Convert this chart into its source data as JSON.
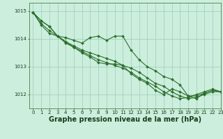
{
  "xlabel": "Graphe pression niveau de la mer (hPa)",
  "xlim": [
    -0.5,
    23
  ],
  "ylim": [
    1011.5,
    1015.3
  ],
  "yticks": [
    1012,
    1013,
    1014,
    1015
  ],
  "xticks": [
    0,
    1,
    2,
    3,
    4,
    5,
    6,
    7,
    8,
    9,
    10,
    11,
    12,
    13,
    14,
    15,
    16,
    17,
    18,
    19,
    20,
    21,
    22,
    23
  ],
  "bg_color": "#cceedd",
  "grid_color": "#99ccbb",
  "line_color": "#2d6e2d",
  "line1": [
    1014.95,
    1014.65,
    1014.45,
    1014.1,
    1014.05,
    1013.95,
    1013.85,
    1014.05,
    1014.1,
    1013.95,
    1014.1,
    1014.1,
    1013.6,
    1013.25,
    1013.0,
    1012.85,
    1012.65,
    1012.55,
    1012.35,
    1011.95,
    1011.95,
    1012.05,
    1012.15,
    1012.1
  ],
  "line2": [
    1014.95,
    1014.5,
    1014.2,
    1014.1,
    1013.85,
    1013.7,
    1013.5,
    1013.35,
    1013.15,
    1013.1,
    1013.1,
    1013.05,
    1012.75,
    1012.55,
    1012.4,
    1012.15,
    1012.0,
    1012.2,
    1012.1,
    1011.95,
    1011.85,
    1012.05,
    1012.15,
    1012.1
  ],
  "line3": [
    1014.95,
    1014.55,
    1014.3,
    1014.1,
    1013.9,
    1013.75,
    1013.6,
    1013.5,
    1013.4,
    1013.3,
    1013.2,
    1013.05,
    1012.95,
    1012.8,
    1012.6,
    1012.4,
    1012.3,
    1012.1,
    1011.95,
    1011.85,
    1011.9,
    1012.0,
    1012.1,
    1012.1
  ],
  "line4": [
    1014.95,
    1014.65,
    1014.45,
    1014.1,
    1013.9,
    1013.7,
    1013.55,
    1013.4,
    1013.25,
    1013.15,
    1013.05,
    1012.95,
    1012.8,
    1012.6,
    1012.45,
    1012.3,
    1012.1,
    1011.95,
    1011.85,
    1011.9,
    1012.0,
    1012.1,
    1012.2,
    1012.1
  ],
  "marker": "D",
  "markersize": 2.0,
  "linewidth": 0.8,
  "tick_fontsize": 5.0,
  "xlabel_fontsize": 7.0
}
